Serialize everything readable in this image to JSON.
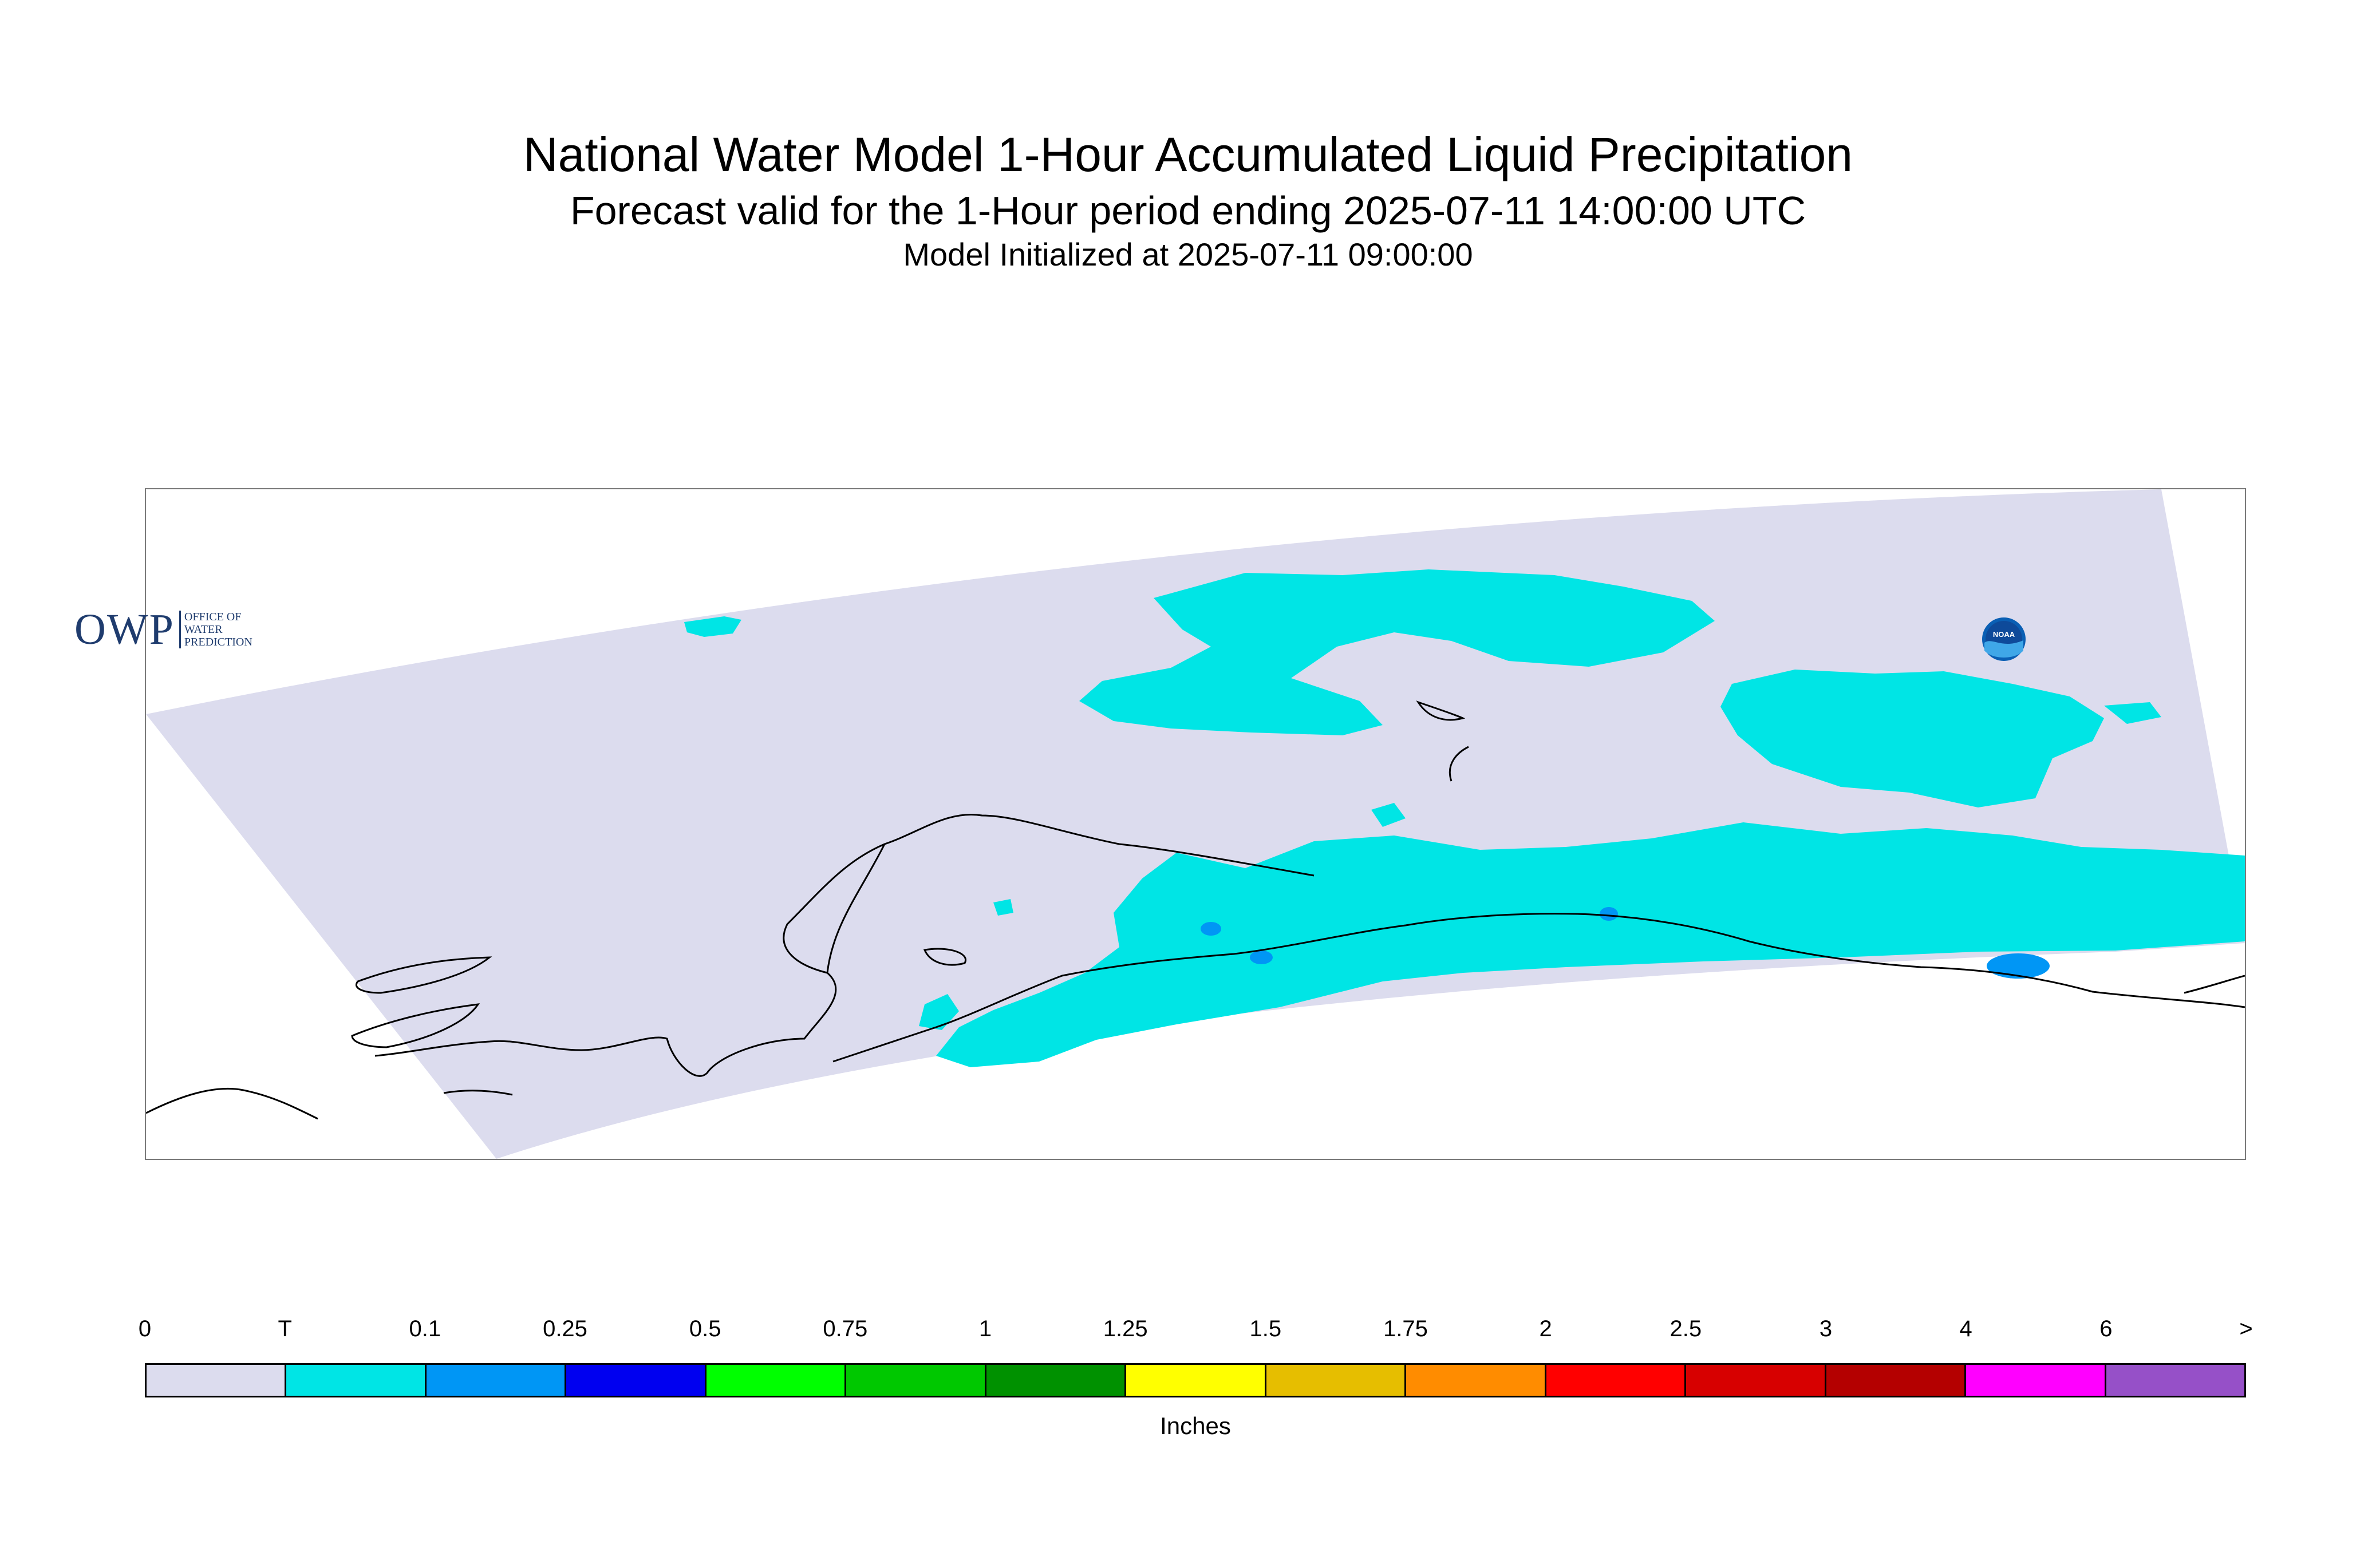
{
  "header": {
    "title": "National Water Model 1-Hour Accumulated Liquid Precipitation",
    "subtitle": "Forecast valid for the 1-Hour period ending 2025-07-11 14:00:00 UTC",
    "init_line": "Model Initialized at 2025-07-11 09:00:00"
  },
  "logos": {
    "owp_letters": "OWP",
    "owp_tagline": [
      "OFFICE OF",
      "WATER",
      "PREDICTION"
    ],
    "noaa_text": "NOAA"
  },
  "map": {
    "region_fill": "#dcdcee",
    "coastline_color": "#000000"
  },
  "legend": {
    "tick_labels": [
      "0",
      "T",
      "0.1",
      "0.25",
      "0.5",
      "0.75",
      "1",
      "1.25",
      "1.5",
      "1.75",
      "2",
      "2.5",
      "3",
      "4",
      "6",
      ">"
    ],
    "colors": [
      "#dcdcee",
      "#00e5e5",
      "#0096f5",
      "#0000f0",
      "#00ff00",
      "#00c800",
      "#009100",
      "#ffff00",
      "#e6be00",
      "#ff8c00",
      "#ff0000",
      "#d70000",
      "#b40000",
      "#ff00ff",
      "#9650c8"
    ],
    "unit": "Inches"
  }
}
